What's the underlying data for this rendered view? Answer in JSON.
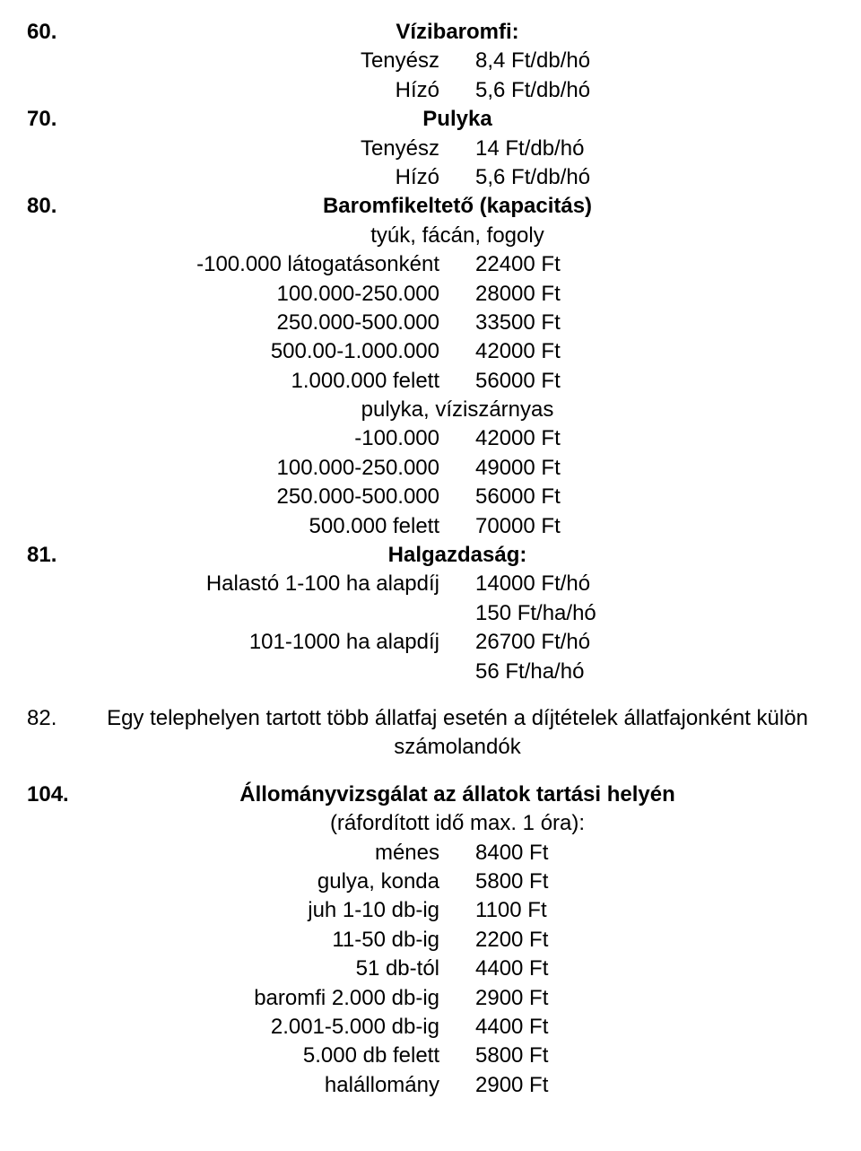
{
  "font": {
    "family": "Arial",
    "size_pt": 18
  },
  "colors": {
    "text": "#000000",
    "background": "#ffffff"
  },
  "s60": {
    "num": "60.",
    "title": "Vízibaromfi:",
    "rows": [
      {
        "l": "Tenyész",
        "r": "8,4 Ft/db/hó"
      },
      {
        "l": "Hízó",
        "r": "5,6 Ft/db/hó"
      }
    ]
  },
  "s70": {
    "num": "70.",
    "title": "Pulyka",
    "rows": [
      {
        "l": "Tenyész",
        "r": "14 Ft/db/hó"
      },
      {
        "l": "Hízó",
        "r": "5,6 Ft/db/hó"
      }
    ]
  },
  "s80": {
    "num": "80.",
    "title": "Baromfikeltető (kapacitás)",
    "sub1": "tyúk, fácán, fogoly",
    "rows1": [
      {
        "l": "-100.000 látogatásonként",
        "r": "22400 Ft"
      },
      {
        "l": "100.000-250.000",
        "r": "28000 Ft"
      },
      {
        "l": "250.000-500.000",
        "r": "33500 Ft"
      },
      {
        "l": "500.00-1.000.000",
        "r": "42000 Ft"
      },
      {
        "l": "1.000.000 felett",
        "r": "56000 Ft"
      }
    ],
    "sub2": "pulyka, víziszárnyas",
    "rows2": [
      {
        "l": "-100.000",
        "r": "42000 Ft"
      },
      {
        "l": "100.000-250.000",
        "r": "49000 Ft"
      },
      {
        "l": "250.000-500.000",
        "r": "56000 Ft"
      },
      {
        "l": "500.000 felett",
        "r": "70000 Ft"
      }
    ]
  },
  "s81": {
    "num": "81.",
    "title": "Halgazdaság:",
    "rows": [
      {
        "l": "Halastó 1-100 ha alapdíj",
        "r": "14000 Ft/hó"
      },
      {
        "l": "",
        "r": "150 Ft/ha/hó"
      },
      {
        "l": "101-1000 ha alapdíj",
        "r": "26700 Ft/hó"
      },
      {
        "l": "",
        "r": "56 Ft/ha/hó"
      }
    ]
  },
  "s82": {
    "num": "82.",
    "note": "Egy telephelyen tartott több állatfaj esetén a díjtételek állatfajonként külön számolandók"
  },
  "s104": {
    "num": "104.",
    "title": "Állományvizsgálat az állatok tartási helyén",
    "sub": "(ráfordított idő max. 1 óra):",
    "rows": [
      {
        "l": "ménes",
        "r": "8400 Ft"
      },
      {
        "l": "gulya, konda",
        "r": "5800 Ft"
      },
      {
        "l": "juh 1-10 db-ig",
        "r": "1100 Ft"
      },
      {
        "l": "11-50 db-ig",
        "r": "2200 Ft"
      },
      {
        "l": "51 db-tól",
        "r": "4400 Ft"
      },
      {
        "l": "baromfi 2.000 db-ig",
        "r": "2900 Ft"
      },
      {
        "l": "2.001-5.000 db-ig",
        "r": "4400 Ft"
      },
      {
        "l": "5.000 db felett",
        "r": "5800 Ft"
      },
      {
        "l": "halállomány",
        "r": "2900 Ft"
      }
    ]
  }
}
